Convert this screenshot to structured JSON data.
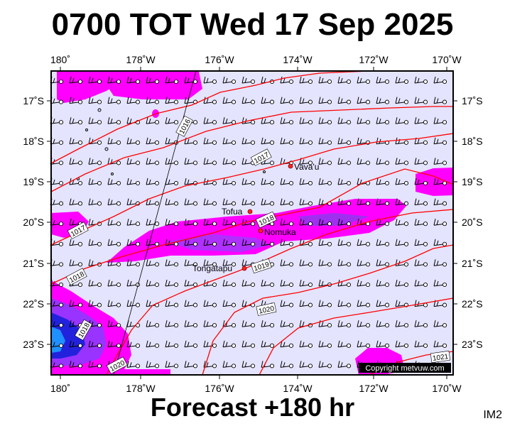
{
  "title": "0700 TOT Wed 17 Sep 2025",
  "forecast": "Forecast +180 hr",
  "image_code": "IM2",
  "copyright": "Copyright metvuw.com",
  "lon_labels": [
    "180˚",
    "178˚W",
    "176˚W",
    "174˚W",
    "172˚W",
    "170˚W"
  ],
  "lat_labels": [
    "17˚S",
    "18˚S",
    "19˚S",
    "20˚S",
    "21˚S",
    "22˚S",
    "23˚S"
  ],
  "isobar_labels": [
    "1016",
    "1017",
    "1017",
    "1018",
    "1018",
    "1019",
    "1018",
    "1020",
    "1020",
    "1021"
  ],
  "places": [
    "Vava'u",
    "Tofua",
    "Nomuka",
    "Tongatapu"
  ],
  "colors": {
    "ocean": "#e4e4ff",
    "isobar": "#ff0000",
    "rain_light": "#ff00ff",
    "rain_medium": "#9933ff",
    "rain_heavy": "#2222dd",
    "rain_extreme": "#1e90ff"
  }
}
